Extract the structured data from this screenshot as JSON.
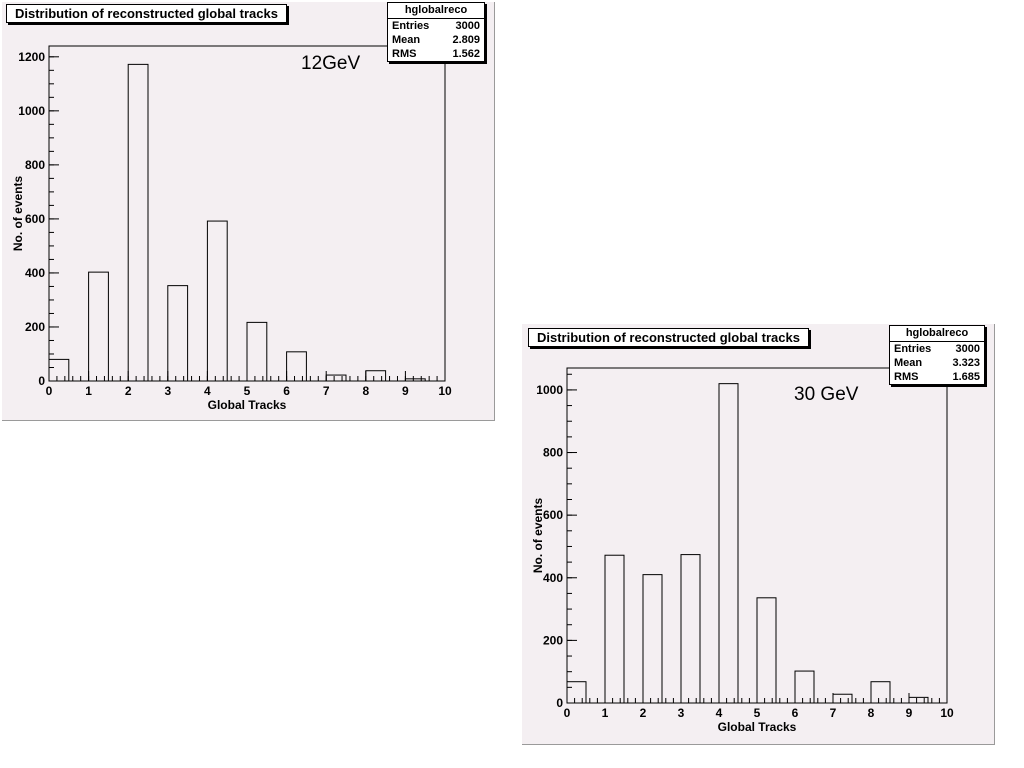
{
  "chart_data": [
    {
      "type": "bar",
      "title": "Distribution of reconstructed global tracks",
      "annotation": "12GeV",
      "xlabel": "Global Tracks",
      "ylabel": "No. of events",
      "xlim": [
        0,
        10
      ],
      "ylim": [
        0,
        1240
      ],
      "x_ticks": [
        0,
        1,
        2,
        3,
        4,
        5,
        6,
        7,
        8,
        9,
        10
      ],
      "y_ticks": [
        0,
        200,
        400,
        600,
        800,
        1000,
        1200
      ],
      "bins": [
        {
          "x0": 0.0,
          "x1": 0.5,
          "value": 80
        },
        {
          "x0": 0.5,
          "x1": 1.0,
          "value": 0
        },
        {
          "x0": 1.0,
          "x1": 1.5,
          "value": 403
        },
        {
          "x0": 1.5,
          "x1": 2.0,
          "value": 0
        },
        {
          "x0": 2.0,
          "x1": 2.5,
          "value": 1172
        },
        {
          "x0": 2.5,
          "x1": 3.0,
          "value": 0
        },
        {
          "x0": 3.0,
          "x1": 3.5,
          "value": 353
        },
        {
          "x0": 3.5,
          "x1": 4.0,
          "value": 0
        },
        {
          "x0": 4.0,
          "x1": 4.5,
          "value": 592
        },
        {
          "x0": 4.5,
          "x1": 5.0,
          "value": 0
        },
        {
          "x0": 5.0,
          "x1": 5.5,
          "value": 217
        },
        {
          "x0": 5.5,
          "x1": 6.0,
          "value": 0
        },
        {
          "x0": 6.0,
          "x1": 6.5,
          "value": 108
        },
        {
          "x0": 6.5,
          "x1": 7.0,
          "value": 0
        },
        {
          "x0": 7.0,
          "x1": 7.5,
          "value": 22
        },
        {
          "x0": 7.5,
          "x1": 8.0,
          "value": 0
        },
        {
          "x0": 8.0,
          "x1": 8.5,
          "value": 38
        },
        {
          "x0": 8.5,
          "x1": 9.0,
          "value": 0
        },
        {
          "x0": 9.0,
          "x1": 9.5,
          "value": 8
        },
        {
          "x0": 9.5,
          "x1": 10.0,
          "value": 0
        }
      ],
      "stats": {
        "name": "hglobalreco",
        "rows": [
          {
            "label": "Entries",
            "value": "3000"
          },
          {
            "label": "Mean",
            "value": "2.809"
          },
          {
            "label": "RMS",
            "value": "1.562"
          }
        ]
      },
      "grid": false
    },
    {
      "type": "bar",
      "title": "Distribution of reconstructed global tracks",
      "annotation": "30 GeV",
      "xlabel": "Global Tracks",
      "ylabel": "No. of events",
      "xlim": [
        0,
        10
      ],
      "ylim": [
        0,
        1070
      ],
      "x_ticks": [
        0,
        1,
        2,
        3,
        4,
        5,
        6,
        7,
        8,
        9,
        10
      ],
      "y_ticks": [
        0,
        200,
        400,
        600,
        800,
        1000
      ],
      "bins": [
        {
          "x0": 0.0,
          "x1": 0.5,
          "value": 68
        },
        {
          "x0": 0.5,
          "x1": 1.0,
          "value": 0
        },
        {
          "x0": 1.0,
          "x1": 1.5,
          "value": 472
        },
        {
          "x0": 1.5,
          "x1": 2.0,
          "value": 0
        },
        {
          "x0": 2.0,
          "x1": 2.5,
          "value": 410
        },
        {
          "x0": 2.5,
          "x1": 3.0,
          "value": 0
        },
        {
          "x0": 3.0,
          "x1": 3.5,
          "value": 474
        },
        {
          "x0": 3.5,
          "x1": 4.0,
          "value": 0
        },
        {
          "x0": 4.0,
          "x1": 4.5,
          "value": 1020
        },
        {
          "x0": 4.5,
          "x1": 5.0,
          "value": 0
        },
        {
          "x0": 5.0,
          "x1": 5.5,
          "value": 336
        },
        {
          "x0": 5.5,
          "x1": 6.0,
          "value": 0
        },
        {
          "x0": 6.0,
          "x1": 6.5,
          "value": 102
        },
        {
          "x0": 6.5,
          "x1": 7.0,
          "value": 0
        },
        {
          "x0": 7.0,
          "x1": 7.5,
          "value": 28
        },
        {
          "x0": 7.5,
          "x1": 8.0,
          "value": 0
        },
        {
          "x0": 8.0,
          "x1": 8.5,
          "value": 68
        },
        {
          "x0": 8.5,
          "x1": 9.0,
          "value": 0
        },
        {
          "x0": 9.0,
          "x1": 9.5,
          "value": 18
        },
        {
          "x0": 9.5,
          "x1": 10.0,
          "value": 0
        }
      ],
      "stats": {
        "name": "hglobalreco",
        "rows": [
          {
            "label": "Entries",
            "value": "3000"
          },
          {
            "label": "Mean",
            "value": "3.323"
          },
          {
            "label": "RMS",
            "value": "1.685"
          }
        ]
      },
      "grid": false
    }
  ]
}
